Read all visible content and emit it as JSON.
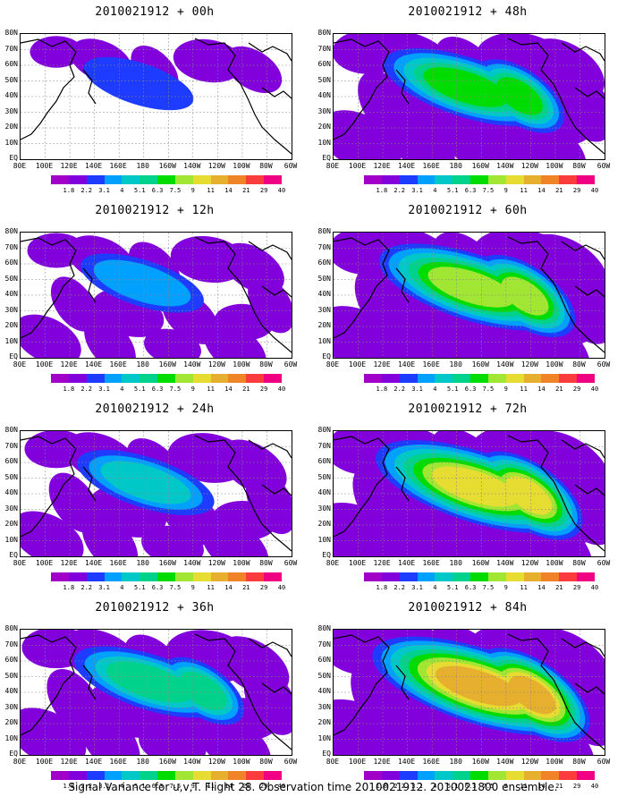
{
  "panels": [
    {
      "title": "2010021912 + 00h",
      "level": 0.05
    },
    {
      "title": "2010021912 + 48h",
      "level": 0.45
    },
    {
      "title": "2010021912 + 12h",
      "level": 0.15
    },
    {
      "title": "2010021912 + 60h",
      "level": 0.6
    },
    {
      "title": "2010021912 + 24h",
      "level": 0.25
    },
    {
      "title": "2010021912 + 72h",
      "level": 0.7
    },
    {
      "title": "2010021912 + 36h",
      "level": 0.35
    },
    {
      "title": "2010021912 + 84h",
      "level": 0.8
    }
  ],
  "lat_labels": [
    "80N",
    "70N",
    "60N",
    "50N",
    "40N",
    "30N",
    "20N",
    "10N",
    "EQ"
  ],
  "lon_labels": [
    "80E",
    "100E",
    "120E",
    "140E",
    "160E",
    "180",
    "160W",
    "140W",
    "120W",
    "100W",
    "80W",
    "60W"
  ],
  "colorbar": {
    "labels": [
      "1.8",
      "2.2",
      "3.1",
      "4",
      "5.1",
      "6.3",
      "7.5",
      "9",
      "11",
      "14",
      "21",
      "29",
      "40"
    ],
    "colors": [
      "#a000c8",
      "#8200dc",
      "#1e3cff",
      "#00a0ff",
      "#00c8c8",
      "#00d28c",
      "#00dc00",
      "#a0e632",
      "#e6dc32",
      "#e6af2d",
      "#f08228",
      "#fa3c3c",
      "#f00082"
    ]
  },
  "caption": "Signal Variance for u,v,T. Flight 28. Observation time 2010021912. 2010021800 ensemble."
}
